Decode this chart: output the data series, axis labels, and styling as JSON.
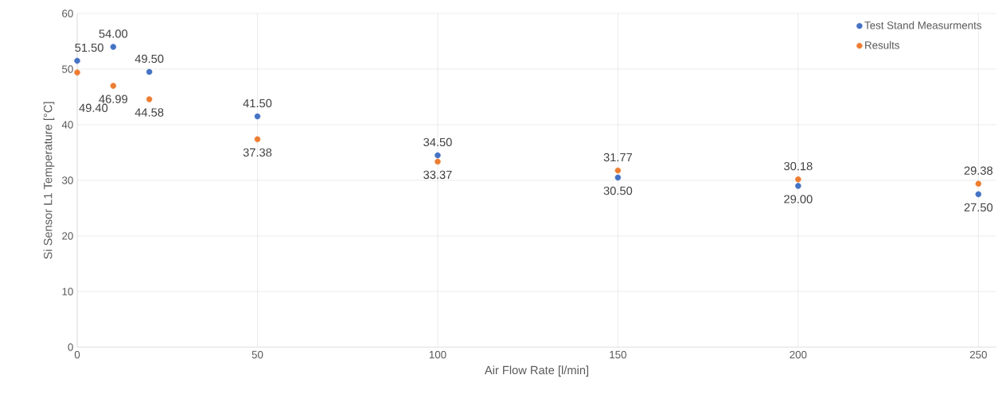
{
  "chart_data": {
    "type": "scatter",
    "xlabel": "Air Flow Rate [l/min]",
    "ylabel": "Si Sensor L1 Temperature [°C]",
    "x": [
      0,
      10,
      20,
      50,
      100,
      150,
      200,
      250
    ],
    "series": [
      {
        "name": "Test Stand Measurments",
        "color": "#4472c4",
        "values": [
          51.5,
          54,
          49.5,
          41.5,
          34.5,
          30.5,
          29,
          27.5
        ],
        "value_labels": [
          "51.50",
          "54.00",
          "49.50",
          "41.50",
          "34.50",
          "30.50",
          "29.00",
          "27.50"
        ]
      },
      {
        "name": "Results",
        "color": "#ed7d31",
        "values": [
          49.4,
          46.99,
          44.58,
          37.38,
          33.37,
          31.77,
          30.18,
          29.38
        ],
        "value_labels": [
          "49.40",
          "46.99",
          "44.58",
          "37.38",
          "33.37",
          "31.77",
          "30.18",
          "29.38"
        ]
      }
    ],
    "xlim": [
      0,
      255
    ],
    "ylim": [
      0,
      60
    ],
    "xticks": [
      0,
      50,
      100,
      150,
      200,
      250
    ],
    "yticks": [
      0,
      10,
      20,
      30,
      40,
      50,
      60
    ],
    "grid": true,
    "legend": "top right",
    "marker": "circle"
  }
}
